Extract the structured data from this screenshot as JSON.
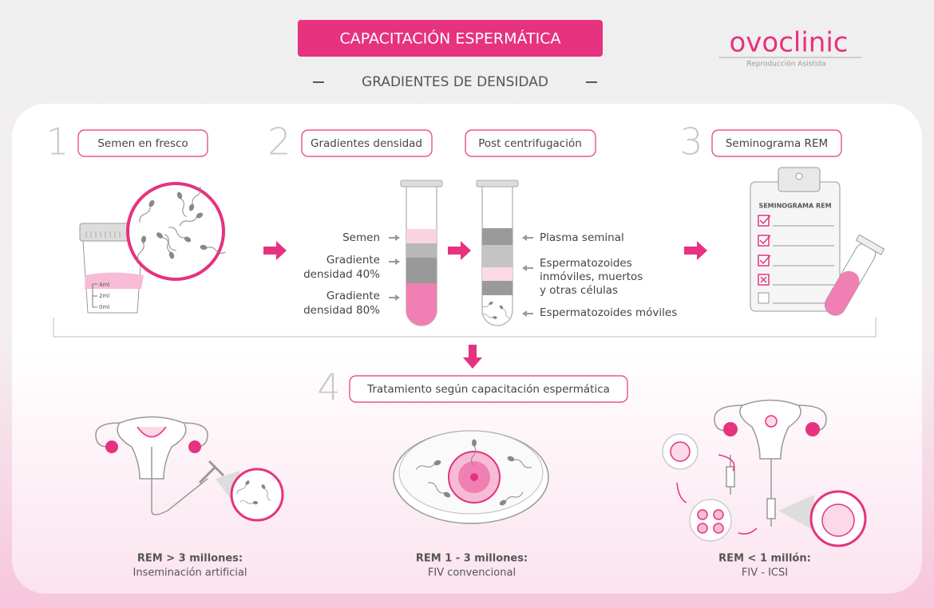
{
  "header": {
    "title": "CAPACITACIÓN ESPERMÁTICA",
    "subtitle": "GRADIENTES DE DENSIDAD"
  },
  "logo": {
    "name": "ovoclinic",
    "tagline": "Reproducción Asistida"
  },
  "steps": [
    {
      "number": "1",
      "label": "Semen en fresco"
    },
    {
      "number": "2",
      "label": "Gradientes densidad"
    },
    {
      "label": "Post centrifugación"
    },
    {
      "number": "3",
      "label": "Seminograma REM"
    },
    {
      "number": "4",
      "label": "Tratamiento según capacitación espermática"
    }
  ],
  "container_marks": [
    "4ml",
    "2ml",
    "0ml"
  ],
  "gradient_labels": [
    [
      "Semen"
    ],
    [
      "Gradiente",
      "densidad 40%"
    ],
    [
      "Gradiente",
      "densidad 80%"
    ]
  ],
  "centrifuged_labels": [
    [
      "Plasma seminal"
    ],
    [
      "Espermatozoides",
      "inmóviles, muertos",
      "y otras células"
    ],
    [
      "Espermatozoides móviles"
    ]
  ],
  "clipboard": {
    "title": "SEMINOGRAMA REM"
  },
  "treatments": [
    {
      "condition": "REM > 3 millones:",
      "treatment": "Inseminación artificial"
    },
    {
      "condition": "REM 1 - 3 millones:",
      "treatment": "FIV convencional"
    },
    {
      "condition": "REM < 1 millón:",
      "treatment": "FIV - ICSI"
    }
  ]
}
